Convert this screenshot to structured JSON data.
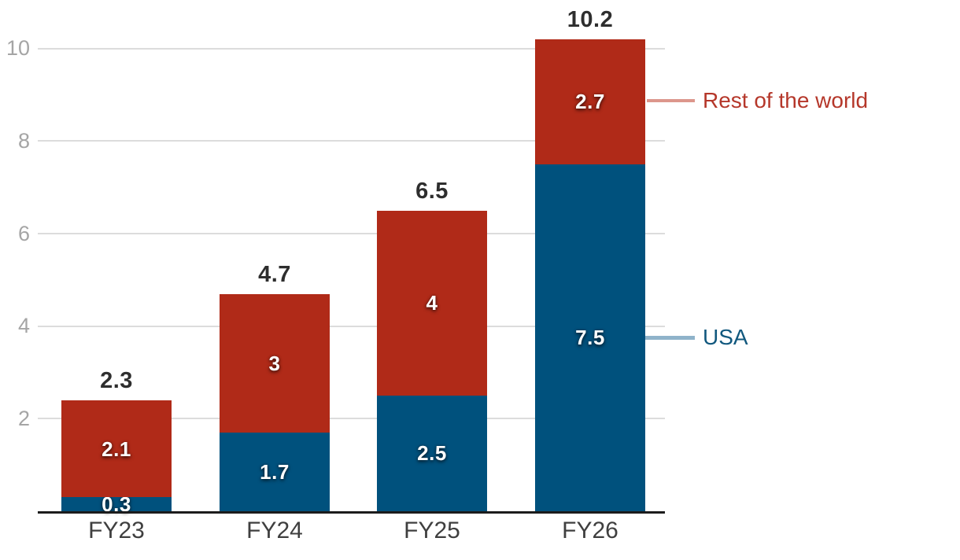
{
  "chart_data": {
    "type": "bar",
    "stacked": true,
    "title": "",
    "xlabel": "",
    "ylabel": "",
    "categories": [
      "FY23",
      "FY24",
      "FY25",
      "FY26"
    ],
    "series": [
      {
        "name": "USA",
        "color": "#00517d",
        "values": [
          0.3,
          1.7,
          2.5,
          7.5
        ],
        "labels": [
          "0.3",
          "1.7",
          "2.5",
          "7.5"
        ]
      },
      {
        "name": "Rest of the world",
        "color": "#b02a18",
        "values": [
          2.1,
          3,
          4,
          2.7
        ],
        "labels": [
          "2.1",
          "3",
          "4",
          "2.7"
        ]
      }
    ],
    "totals": [
      "2.3",
      "4.7",
      "6.5",
      "10.2"
    ],
    "y_ticks": [
      2,
      4,
      6,
      8,
      10
    ],
    "ylim": [
      0,
      10.5
    ],
    "grid": true,
    "legend_position": "right",
    "legend": [
      {
        "label": "Rest of the world",
        "text_color": "#b5372a",
        "line_color": "#dc968c"
      },
      {
        "label": "USA",
        "text_color": "#11587e",
        "line_color": "#8fb3ca"
      }
    ],
    "colors": {
      "gridline": "#dcdcdc",
      "axis_line": "#1c1c1c",
      "y_tick_text": "#a5a5a5",
      "x_tick_text": "#3f3f3f",
      "total_text": "#2e2e2e",
      "segment_text": "#ffffff"
    }
  }
}
